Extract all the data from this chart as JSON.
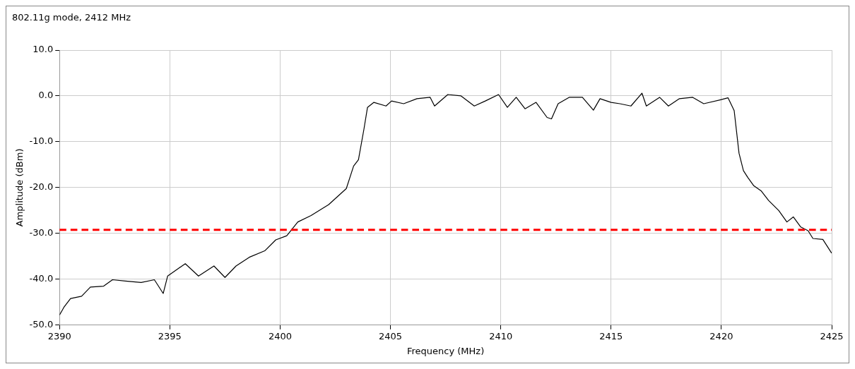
{
  "chart_data": {
    "type": "line",
    "title": "802.11g mode, 2412 MHz",
    "xlabel": "Frequency (MHz)",
    "ylabel": "Amplitude (dBm)",
    "xlim": [
      2390,
      2425
    ],
    "ylim": [
      -50,
      10
    ],
    "xticks": [
      2390,
      2395,
      2400,
      2405,
      2410,
      2415,
      2420,
      2425
    ],
    "yticks": [
      {
        "value": -50,
        "label": "-50.0"
      },
      {
        "value": -40,
        "label": "-40.0"
      },
      {
        "value": -30,
        "label": "-30.0"
      },
      {
        "value": -20,
        "label": "-20.0"
      },
      {
        "value": -10,
        "label": "-10.0"
      },
      {
        "value": 0,
        "label": "0.0"
      },
      {
        "value": 10,
        "label": "10.0"
      }
    ],
    "grid": true,
    "legend": false,
    "marker": "none",
    "line_style": "solid",
    "series": [
      {
        "color": "#000000",
        "x": [
          2390,
          2390.2,
          2390.5,
          2391,
          2391.4,
          2392,
          2392.4,
          2393,
          2393.7,
          2394.3,
          2394.7,
          2394.9,
          2395.7,
          2396.3,
          2397,
          2397.5,
          2398,
          2398.6,
          2399.3,
          2399.8,
          2400.3,
          2400.8,
          2401.4,
          2402.2,
          2403,
          2403.33,
          2403.55,
          2403.8,
          2403.96,
          2404.25,
          2404.8,
          2405.05,
          2405.6,
          2406.2,
          2406.8,
          2407.0,
          2407.6,
          2408.2,
          2408.8,
          2409.3,
          2409.9,
          2410.3,
          2410.7,
          2411.1,
          2411.6,
          2412.1,
          2412.3,
          2412.6,
          2413.1,
          2413.7,
          2414.2,
          2414.5,
          2415.0,
          2415.4,
          2415.9,
          2416.4,
          2416.6,
          2417.2,
          2417.6,
          2418.1,
          2418.7,
          2419.2,
          2420.0,
          2420.3,
          2420.58,
          2420.8,
          2421.0,
          2421.2,
          2421.47,
          2421.8,
          2422.14,
          2422.6,
          2422.97,
          2423.26,
          2423.6,
          2423.93,
          2424.15,
          2424.6,
          2425
        ],
        "values": [
          -47.8,
          -46.1,
          -44.2,
          -43.7,
          -41.7,
          -41.5,
          -40.1,
          -40.4,
          -40.7,
          -40.1,
          -43.1,
          -39.3,
          -36.6,
          -39.3,
          -37.1,
          -39.6,
          -37.1,
          -35.2,
          -33.8,
          -31.4,
          -30.5,
          -27.5,
          -26.1,
          -23.7,
          -20.2,
          -15.3,
          -13.9,
          -7.2,
          -2.5,
          -1.4,
          -2.2,
          -1.1,
          -1.7,
          -0.6,
          -0.3,
          -2.2,
          0.3,
          0,
          -2.2,
          -1.1,
          0.3,
          -2.5,
          -0.3,
          -2.8,
          -1.4,
          -4.7,
          -5.0,
          -1.7,
          -0.3,
          -0.3,
          -3.1,
          -0.6,
          -1.4,
          -1.7,
          -2.2,
          0.6,
          -2.2,
          -0.3,
          -2.2,
          -0.6,
          -0.3,
          -1.7,
          -0.8,
          -0.4,
          -3.2,
          -12.5,
          -16.3,
          -17.8,
          -19.6,
          -20.7,
          -22.8,
          -25,
          -27.5,
          -26.4,
          -28.6,
          -29.4,
          -31.1,
          -31.3,
          -34.3
        ]
      }
    ],
    "ref_lines": [
      {
        "axis": "y",
        "value": -29.2,
        "color": "#ff0000",
        "line_style": "dashed"
      }
    ]
  }
}
